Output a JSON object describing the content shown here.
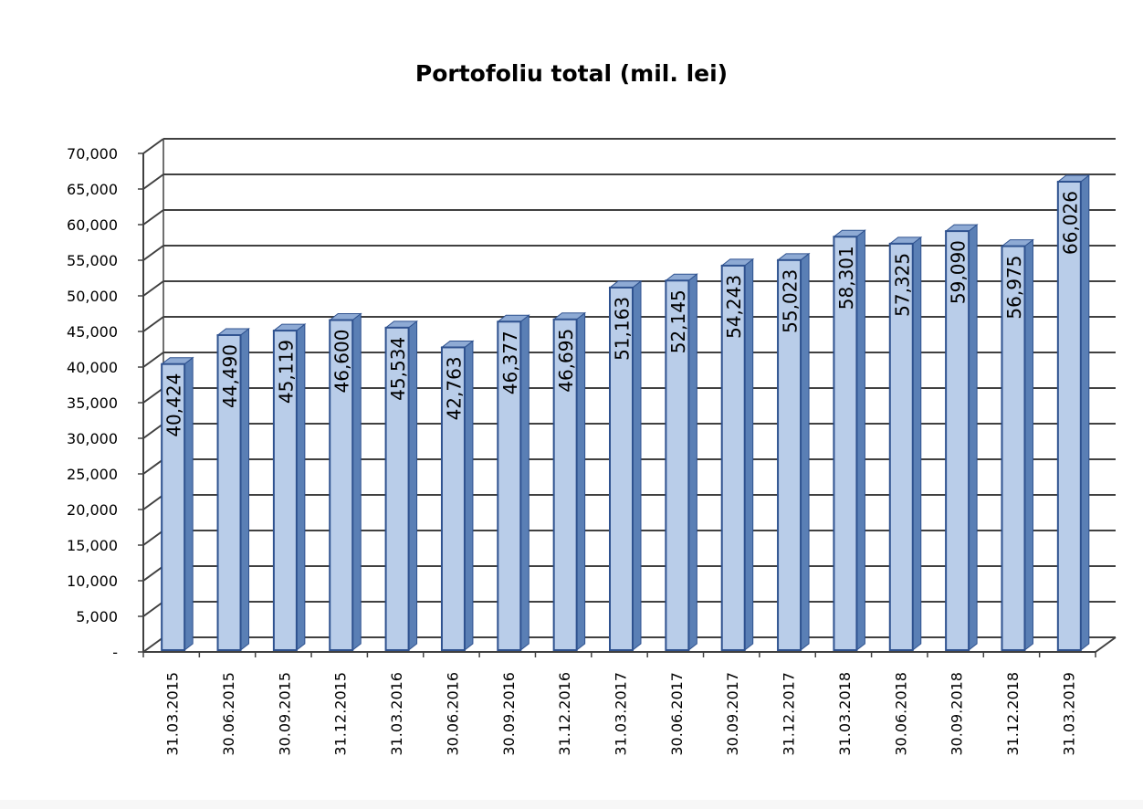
{
  "chart_data": {
    "type": "bar",
    "title": "Portofoliu total (mil. lei)",
    "xlabel": "",
    "ylabel": "",
    "ylim": [
      0,
      70000
    ],
    "y_ticks": [
      "-",
      "5,000",
      "10,000",
      "15,000",
      "20,000",
      "25,000",
      "30,000",
      "35,000",
      "40,000",
      "45,000",
      "50,000",
      "55,000",
      "60,000",
      "65,000",
      "70,000"
    ],
    "categories": [
      "31.03.2015",
      "30.06.2015",
      "30.09.2015",
      "31.12.2015",
      "31.03.2016",
      "30.06.2016",
      "30.09.2016",
      "31.12.2016",
      "31.03.2017",
      "30.06.2017",
      "30.09.2017",
      "31.12.2017",
      "31.03.2018",
      "30.06.2018",
      "30.09.2018",
      "31.12.2018",
      "31.03.2019"
    ],
    "values": [
      40424,
      44490,
      45119,
      46600,
      45534,
      42763,
      46377,
      46695,
      51163,
      52145,
      54243,
      55023,
      58301,
      57325,
      59090,
      56975,
      66026
    ],
    "value_labels": [
      "40,424",
      "44,490",
      "45,119",
      "46,600",
      "45,534",
      "42,763",
      "46,377",
      "46,695",
      "51,163",
      "52,145",
      "54,243",
      "55,023",
      "58,301",
      "57,325",
      "59,090",
      "56,975",
      "66,026"
    ],
    "grid": true,
    "legend": "none",
    "style": "3d-column",
    "colors": {
      "bar_front": "#b9cde9",
      "bar_side": "#5a7fb5",
      "bar_top": "#8eaad4",
      "bar_edge": "#2f528f",
      "grid": "#404040"
    }
  }
}
